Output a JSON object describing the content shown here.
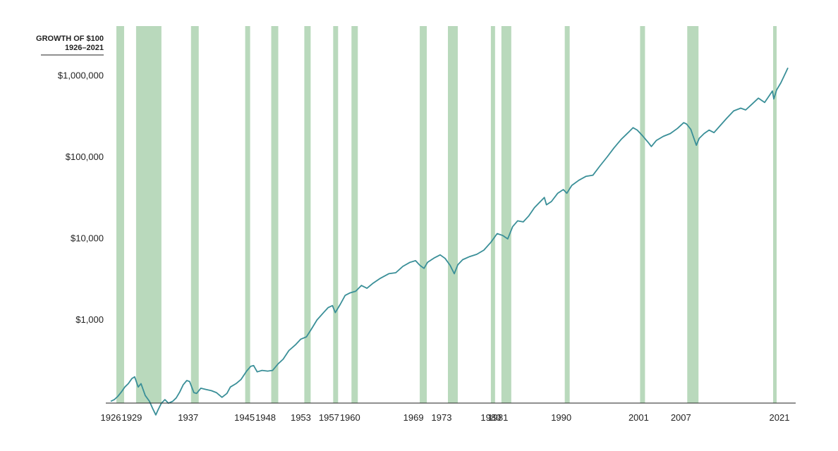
{
  "chart_data": {
    "type": "line",
    "title": "GROWTH OF $100",
    "subtitle": "1926–2021",
    "yscale": "log",
    "ylim": [
      100,
      1500000
    ],
    "xlim": [
      1926,
      2022.2
    ],
    "y_ticks": [
      {
        "value": 1000,
        "label": "$1,000"
      },
      {
        "value": 10000,
        "label": "$10,000"
      },
      {
        "value": 100000,
        "label": "$100,000"
      },
      {
        "value": 1000000,
        "label": "$1,000,000"
      }
    ],
    "x_tick_labels": [
      "1926",
      "1929",
      "1937",
      "1945",
      "1948",
      "1953",
      "1957",
      "1960",
      "1969",
      "1973",
      "1980",
      "1981",
      "1990",
      "2001",
      "2007",
      "2021"
    ],
    "recessions": [
      [
        1926.8,
        1927.9
      ],
      [
        1929.6,
        1933.2
      ],
      [
        1937.4,
        1938.5
      ],
      [
        1945.1,
        1945.8
      ],
      [
        1948.8,
        1949.8
      ],
      [
        1953.5,
        1954.4
      ],
      [
        1957.6,
        1958.3
      ],
      [
        1960.2,
        1961.1
      ],
      [
        1969.9,
        1970.9
      ],
      [
        1973.9,
        1975.3
      ],
      [
        1980.0,
        1980.6
      ],
      [
        1981.5,
        1982.9
      ],
      [
        1990.5,
        1991.2
      ],
      [
        2001.2,
        2001.9
      ],
      [
        2007.9,
        2009.5
      ],
      [
        2020.1,
        2020.6
      ]
    ],
    "series": [
      {
        "values": [
          [
            1926.0,
            100
          ],
          [
            1926.5,
            105
          ],
          [
            1927.0,
            115
          ],
          [
            1927.5,
            130
          ],
          [
            1928.0,
            150
          ],
          [
            1928.5,
            165
          ],
          [
            1929.0,
            190
          ],
          [
            1929.4,
            200
          ],
          [
            1929.9,
            150
          ],
          [
            1930.3,
            165
          ],
          [
            1930.9,
            118
          ],
          [
            1931.5,
            100
          ],
          [
            1932.0,
            80
          ],
          [
            1932.4,
            68
          ],
          [
            1932.7,
            78
          ],
          [
            1933.2,
            95
          ],
          [
            1933.7,
            105
          ],
          [
            1934.2,
            95
          ],
          [
            1934.8,
            100
          ],
          [
            1935.3,
            110
          ],
          [
            1935.8,
            130
          ],
          [
            1936.3,
            160
          ],
          [
            1936.8,
            180
          ],
          [
            1937.2,
            175
          ],
          [
            1937.8,
            128
          ],
          [
            1938.2,
            125
          ],
          [
            1938.8,
            145
          ],
          [
            1939.5,
            140
          ],
          [
            1940.3,
            135
          ],
          [
            1941.0,
            128
          ],
          [
            1941.8,
            112
          ],
          [
            1942.5,
            125
          ],
          [
            1943.0,
            150
          ],
          [
            1943.8,
            165
          ],
          [
            1944.5,
            185
          ],
          [
            1945.3,
            235
          ],
          [
            1945.9,
            270
          ],
          [
            1946.3,
            275
          ],
          [
            1946.8,
            230
          ],
          [
            1947.5,
            240
          ],
          [
            1948.3,
            235
          ],
          [
            1949.0,
            240
          ],
          [
            1949.8,
            290
          ],
          [
            1950.5,
            330
          ],
          [
            1951.3,
            420
          ],
          [
            1952.3,
            500
          ],
          [
            1953.0,
            580
          ],
          [
            1953.8,
            620
          ],
          [
            1954.5,
            770
          ],
          [
            1955.3,
            1000
          ],
          [
            1956.3,
            1250
          ],
          [
            1956.9,
            1420
          ],
          [
            1957.5,
            1500
          ],
          [
            1957.9,
            1230
          ],
          [
            1958.6,
            1550
          ],
          [
            1959.3,
            2000
          ],
          [
            1960.0,
            2150
          ],
          [
            1960.8,
            2250
          ],
          [
            1961.6,
            2650
          ],
          [
            1962.4,
            2450
          ],
          [
            1963.2,
            2800
          ],
          [
            1964.3,
            3250
          ],
          [
            1965.5,
            3700
          ],
          [
            1966.5,
            3800
          ],
          [
            1967.5,
            4550
          ],
          [
            1968.5,
            5100
          ],
          [
            1969.3,
            5350
          ],
          [
            1969.9,
            4700
          ],
          [
            1970.5,
            4300
          ],
          [
            1971.0,
            5100
          ],
          [
            1972.0,
            5800
          ],
          [
            1972.8,
            6300
          ],
          [
            1973.5,
            5700
          ],
          [
            1974.2,
            4700
          ],
          [
            1974.8,
            3700
          ],
          [
            1975.3,
            4750
          ],
          [
            1976.0,
            5500
          ],
          [
            1977.0,
            6000
          ],
          [
            1978.0,
            6400
          ],
          [
            1979.0,
            7200
          ],
          [
            1980.0,
            9000
          ],
          [
            1980.9,
            11500
          ],
          [
            1981.7,
            10900
          ],
          [
            1982.4,
            9900
          ],
          [
            1983.1,
            14000
          ],
          [
            1983.8,
            16500
          ],
          [
            1984.6,
            16000
          ],
          [
            1985.4,
            19000
          ],
          [
            1986.2,
            24000
          ],
          [
            1987.6,
            32000
          ],
          [
            1987.9,
            26000
          ],
          [
            1988.6,
            28500
          ],
          [
            1989.5,
            36000
          ],
          [
            1990.3,
            40000
          ],
          [
            1990.8,
            36000
          ],
          [
            1991.5,
            45000
          ],
          [
            1992.5,
            52000
          ],
          [
            1993.5,
            58000
          ],
          [
            1994.5,
            60000
          ],
          [
            1995.5,
            78000
          ],
          [
            1996.5,
            100000
          ],
          [
            1997.5,
            130000
          ],
          [
            1998.5,
            165000
          ],
          [
            1999.5,
            200000
          ],
          [
            2000.2,
            230000
          ],
          [
            2000.8,
            215000
          ],
          [
            2001.5,
            185000
          ],
          [
            2002.4,
            150000
          ],
          [
            2002.8,
            135000
          ],
          [
            2003.5,
            160000
          ],
          [
            2004.5,
            180000
          ],
          [
            2005.5,
            195000
          ],
          [
            2006.5,
            225000
          ],
          [
            2007.4,
            265000
          ],
          [
            2007.8,
            255000
          ],
          [
            2008.4,
            220000
          ],
          [
            2008.9,
            165000
          ],
          [
            2009.2,
            140000
          ],
          [
            2009.6,
            170000
          ],
          [
            2010.3,
            195000
          ],
          [
            2011.0,
            215000
          ],
          [
            2011.7,
            200000
          ],
          [
            2012.5,
            240000
          ],
          [
            2013.5,
            300000
          ],
          [
            2014.5,
            370000
          ],
          [
            2015.5,
            400000
          ],
          [
            2016.2,
            380000
          ],
          [
            2017.0,
            440000
          ],
          [
            2018.0,
            530000
          ],
          [
            2018.9,
            470000
          ],
          [
            2019.5,
            560000
          ],
          [
            2020.0,
            650000
          ],
          [
            2020.2,
            520000
          ],
          [
            2020.6,
            670000
          ],
          [
            2021.2,
            820000
          ],
          [
            2021.9,
            1100000
          ],
          [
            2022.2,
            1250000
          ]
        ]
      }
    ],
    "colors": {
      "line": "#3a8f98",
      "recession": "#b9d9bc",
      "axis": "#222222",
      "text": "#222222"
    }
  }
}
